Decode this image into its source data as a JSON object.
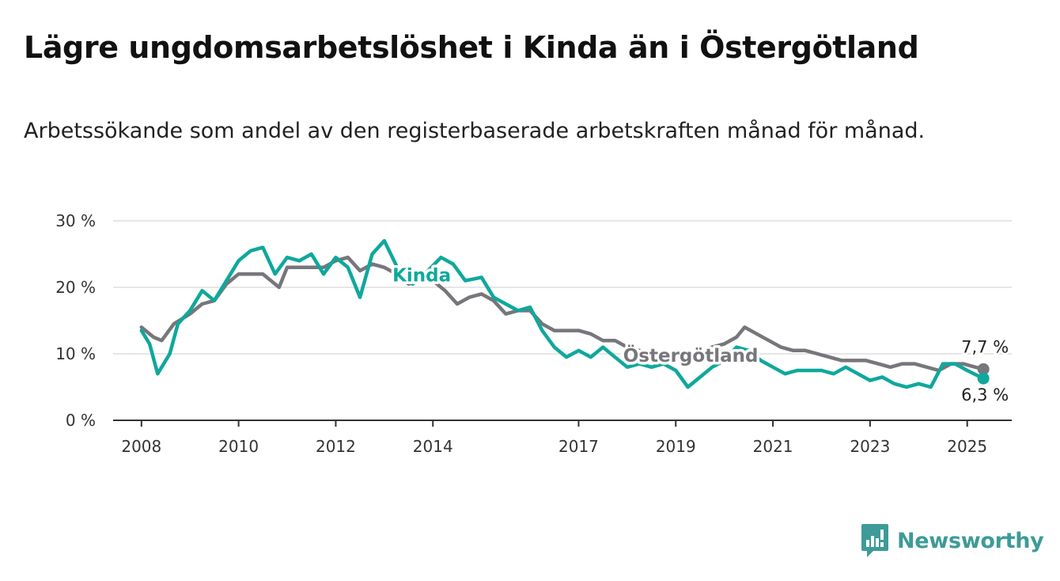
{
  "title": "Lägre ungdomsarbetslöshet i Kinda än i Östergötland",
  "subtitle": "Arbetssökande som andel av den registerbaserade arbetskraften månad för månad.",
  "brand": {
    "name": "Newsworthy",
    "icon": "newsworthy-logo-icon"
  },
  "colors": {
    "kinda": "#0fa89c",
    "ostergotland": "#77767b",
    "grid": "#dddddd",
    "axis": "#333333",
    "brand": "#3d9b98"
  },
  "chart_data": {
    "type": "line",
    "x_ticks": [
      "2008",
      "2010",
      "2012",
      "2014",
      "2017",
      "2019",
      "2021",
      "2023",
      "2025"
    ],
    "y_ticks": [
      "0 %",
      "10 %",
      "20 %",
      "30 %"
    ],
    "ylim": [
      0,
      30
    ],
    "xlim": [
      "2007-06",
      "2025-12"
    ],
    "grid": true,
    "series": [
      {
        "name": "Kinda",
        "end_label": "6,3 %",
        "points": [
          [
            "2008-01",
            13.5
          ],
          [
            "2008-03",
            11.5
          ],
          [
            "2008-05",
            7.0
          ],
          [
            "2008-08",
            10.0
          ],
          [
            "2008-10",
            14.5
          ],
          [
            "2009-01",
            16.5
          ],
          [
            "2009-04",
            19.5
          ],
          [
            "2009-07",
            18.0
          ],
          [
            "2009-10",
            21.0
          ],
          [
            "2010-01",
            24.0
          ],
          [
            "2010-04",
            25.5
          ],
          [
            "2010-07",
            26.0
          ],
          [
            "2010-10",
            22.0
          ],
          [
            "2011-01",
            24.5
          ],
          [
            "2011-04",
            24.0
          ],
          [
            "2011-07",
            25.0
          ],
          [
            "2011-10",
            22.0
          ],
          [
            "2012-01",
            24.5
          ],
          [
            "2012-04",
            23.0
          ],
          [
            "2012-07",
            18.5
          ],
          [
            "2012-10",
            25.0
          ],
          [
            "2013-01",
            27.0
          ],
          [
            "2013-05",
            22.0
          ],
          [
            "2013-08",
            20.5
          ],
          [
            "2013-11",
            22.0
          ],
          [
            "2014-03",
            24.5
          ],
          [
            "2014-06",
            23.5
          ],
          [
            "2014-09",
            21.0
          ],
          [
            "2015-01",
            21.5
          ],
          [
            "2015-04",
            18.5
          ],
          [
            "2015-07",
            17.5
          ],
          [
            "2015-10",
            16.5
          ],
          [
            "2016-01",
            17.0
          ],
          [
            "2016-04",
            13.5
          ],
          [
            "2016-07",
            11.0
          ],
          [
            "2016-10",
            9.5
          ],
          [
            "2017-01",
            10.5
          ],
          [
            "2017-04",
            9.5
          ],
          [
            "2017-07",
            11.0
          ],
          [
            "2017-10",
            9.5
          ],
          [
            "2018-01",
            8.0
          ],
          [
            "2018-04",
            8.5
          ],
          [
            "2018-07",
            8.0
          ],
          [
            "2018-10",
            8.5
          ],
          [
            "2019-01",
            7.5
          ],
          [
            "2019-04",
            5.0
          ],
          [
            "2019-07",
            6.5
          ],
          [
            "2019-10",
            8.0
          ],
          [
            "2020-01",
            9.0
          ],
          [
            "2020-04",
            11.0
          ],
          [
            "2020-07",
            10.5
          ],
          [
            "2020-10",
            9.0
          ],
          [
            "2021-01",
            8.0
          ],
          [
            "2021-04",
            7.0
          ],
          [
            "2021-07",
            7.5
          ],
          [
            "2021-10",
            7.5
          ],
          [
            "2022-01",
            7.5
          ],
          [
            "2022-04",
            7.0
          ],
          [
            "2022-07",
            8.0
          ],
          [
            "2022-10",
            7.0
          ],
          [
            "2023-01",
            6.0
          ],
          [
            "2023-04",
            6.5
          ],
          [
            "2023-07",
            5.5
          ],
          [
            "2023-10",
            5.0
          ],
          [
            "2024-01",
            5.5
          ],
          [
            "2024-04",
            5.0
          ],
          [
            "2024-07",
            8.5
          ],
          [
            "2024-10",
            8.5
          ],
          [
            "2025-01",
            7.5
          ],
          [
            "2025-05",
            6.3
          ]
        ]
      },
      {
        "name": "Östergötland",
        "end_label": "7,7 %",
        "points": [
          [
            "2008-01",
            14.0
          ],
          [
            "2008-04",
            12.5
          ],
          [
            "2008-06",
            12.0
          ],
          [
            "2008-09",
            14.5
          ],
          [
            "2009-01",
            16.0
          ],
          [
            "2009-04",
            17.5
          ],
          [
            "2009-07",
            18.0
          ],
          [
            "2009-10",
            20.5
          ],
          [
            "2010-01",
            22.0
          ],
          [
            "2010-07",
            22.0
          ],
          [
            "2010-11",
            20.0
          ],
          [
            "2011-01",
            23.0
          ],
          [
            "2011-07",
            23.0
          ],
          [
            "2011-10",
            23.0
          ],
          [
            "2012-01",
            24.0
          ],
          [
            "2012-04",
            24.5
          ],
          [
            "2012-07",
            22.5
          ],
          [
            "2012-10",
            23.5
          ],
          [
            "2013-01",
            23.0
          ],
          [
            "2013-04",
            22.0
          ],
          [
            "2013-07",
            20.5
          ],
          [
            "2013-10",
            21.0
          ],
          [
            "2014-01",
            21.0
          ],
          [
            "2014-04",
            19.5
          ],
          [
            "2014-07",
            17.5
          ],
          [
            "2014-10",
            18.5
          ],
          [
            "2015-01",
            19.0
          ],
          [
            "2015-04",
            18.0
          ],
          [
            "2015-07",
            16.0
          ],
          [
            "2015-10",
            16.5
          ],
          [
            "2016-01",
            16.5
          ],
          [
            "2016-04",
            14.5
          ],
          [
            "2016-07",
            13.5
          ],
          [
            "2016-10",
            13.5
          ],
          [
            "2017-01",
            13.5
          ],
          [
            "2017-04",
            13.0
          ],
          [
            "2017-07",
            12.0
          ],
          [
            "2017-10",
            12.0
          ],
          [
            "2018-01",
            11.0
          ],
          [
            "2018-04",
            10.5
          ],
          [
            "2018-07",
            10.0
          ],
          [
            "2018-10",
            10.0
          ],
          [
            "2019-01",
            10.0
          ],
          [
            "2019-04",
            10.0
          ],
          [
            "2019-07",
            10.5
          ],
          [
            "2019-10",
            11.0
          ],
          [
            "2020-01",
            11.5
          ],
          [
            "2020-04",
            12.5
          ],
          [
            "2020-06",
            14.0
          ],
          [
            "2020-09",
            13.0
          ],
          [
            "2020-12",
            12.0
          ],
          [
            "2021-03",
            11.0
          ],
          [
            "2021-06",
            10.5
          ],
          [
            "2021-09",
            10.5
          ],
          [
            "2021-12",
            10.0
          ],
          [
            "2022-03",
            9.5
          ],
          [
            "2022-06",
            9.0
          ],
          [
            "2022-09",
            9.0
          ],
          [
            "2022-12",
            9.0
          ],
          [
            "2023-03",
            8.5
          ],
          [
            "2023-06",
            8.0
          ],
          [
            "2023-09",
            8.5
          ],
          [
            "2023-12",
            8.5
          ],
          [
            "2024-03",
            8.0
          ],
          [
            "2024-06",
            7.5
          ],
          [
            "2024-09",
            8.5
          ],
          [
            "2024-12",
            8.5
          ],
          [
            "2025-03",
            8.0
          ],
          [
            "2025-05",
            7.7
          ]
        ]
      }
    ]
  }
}
